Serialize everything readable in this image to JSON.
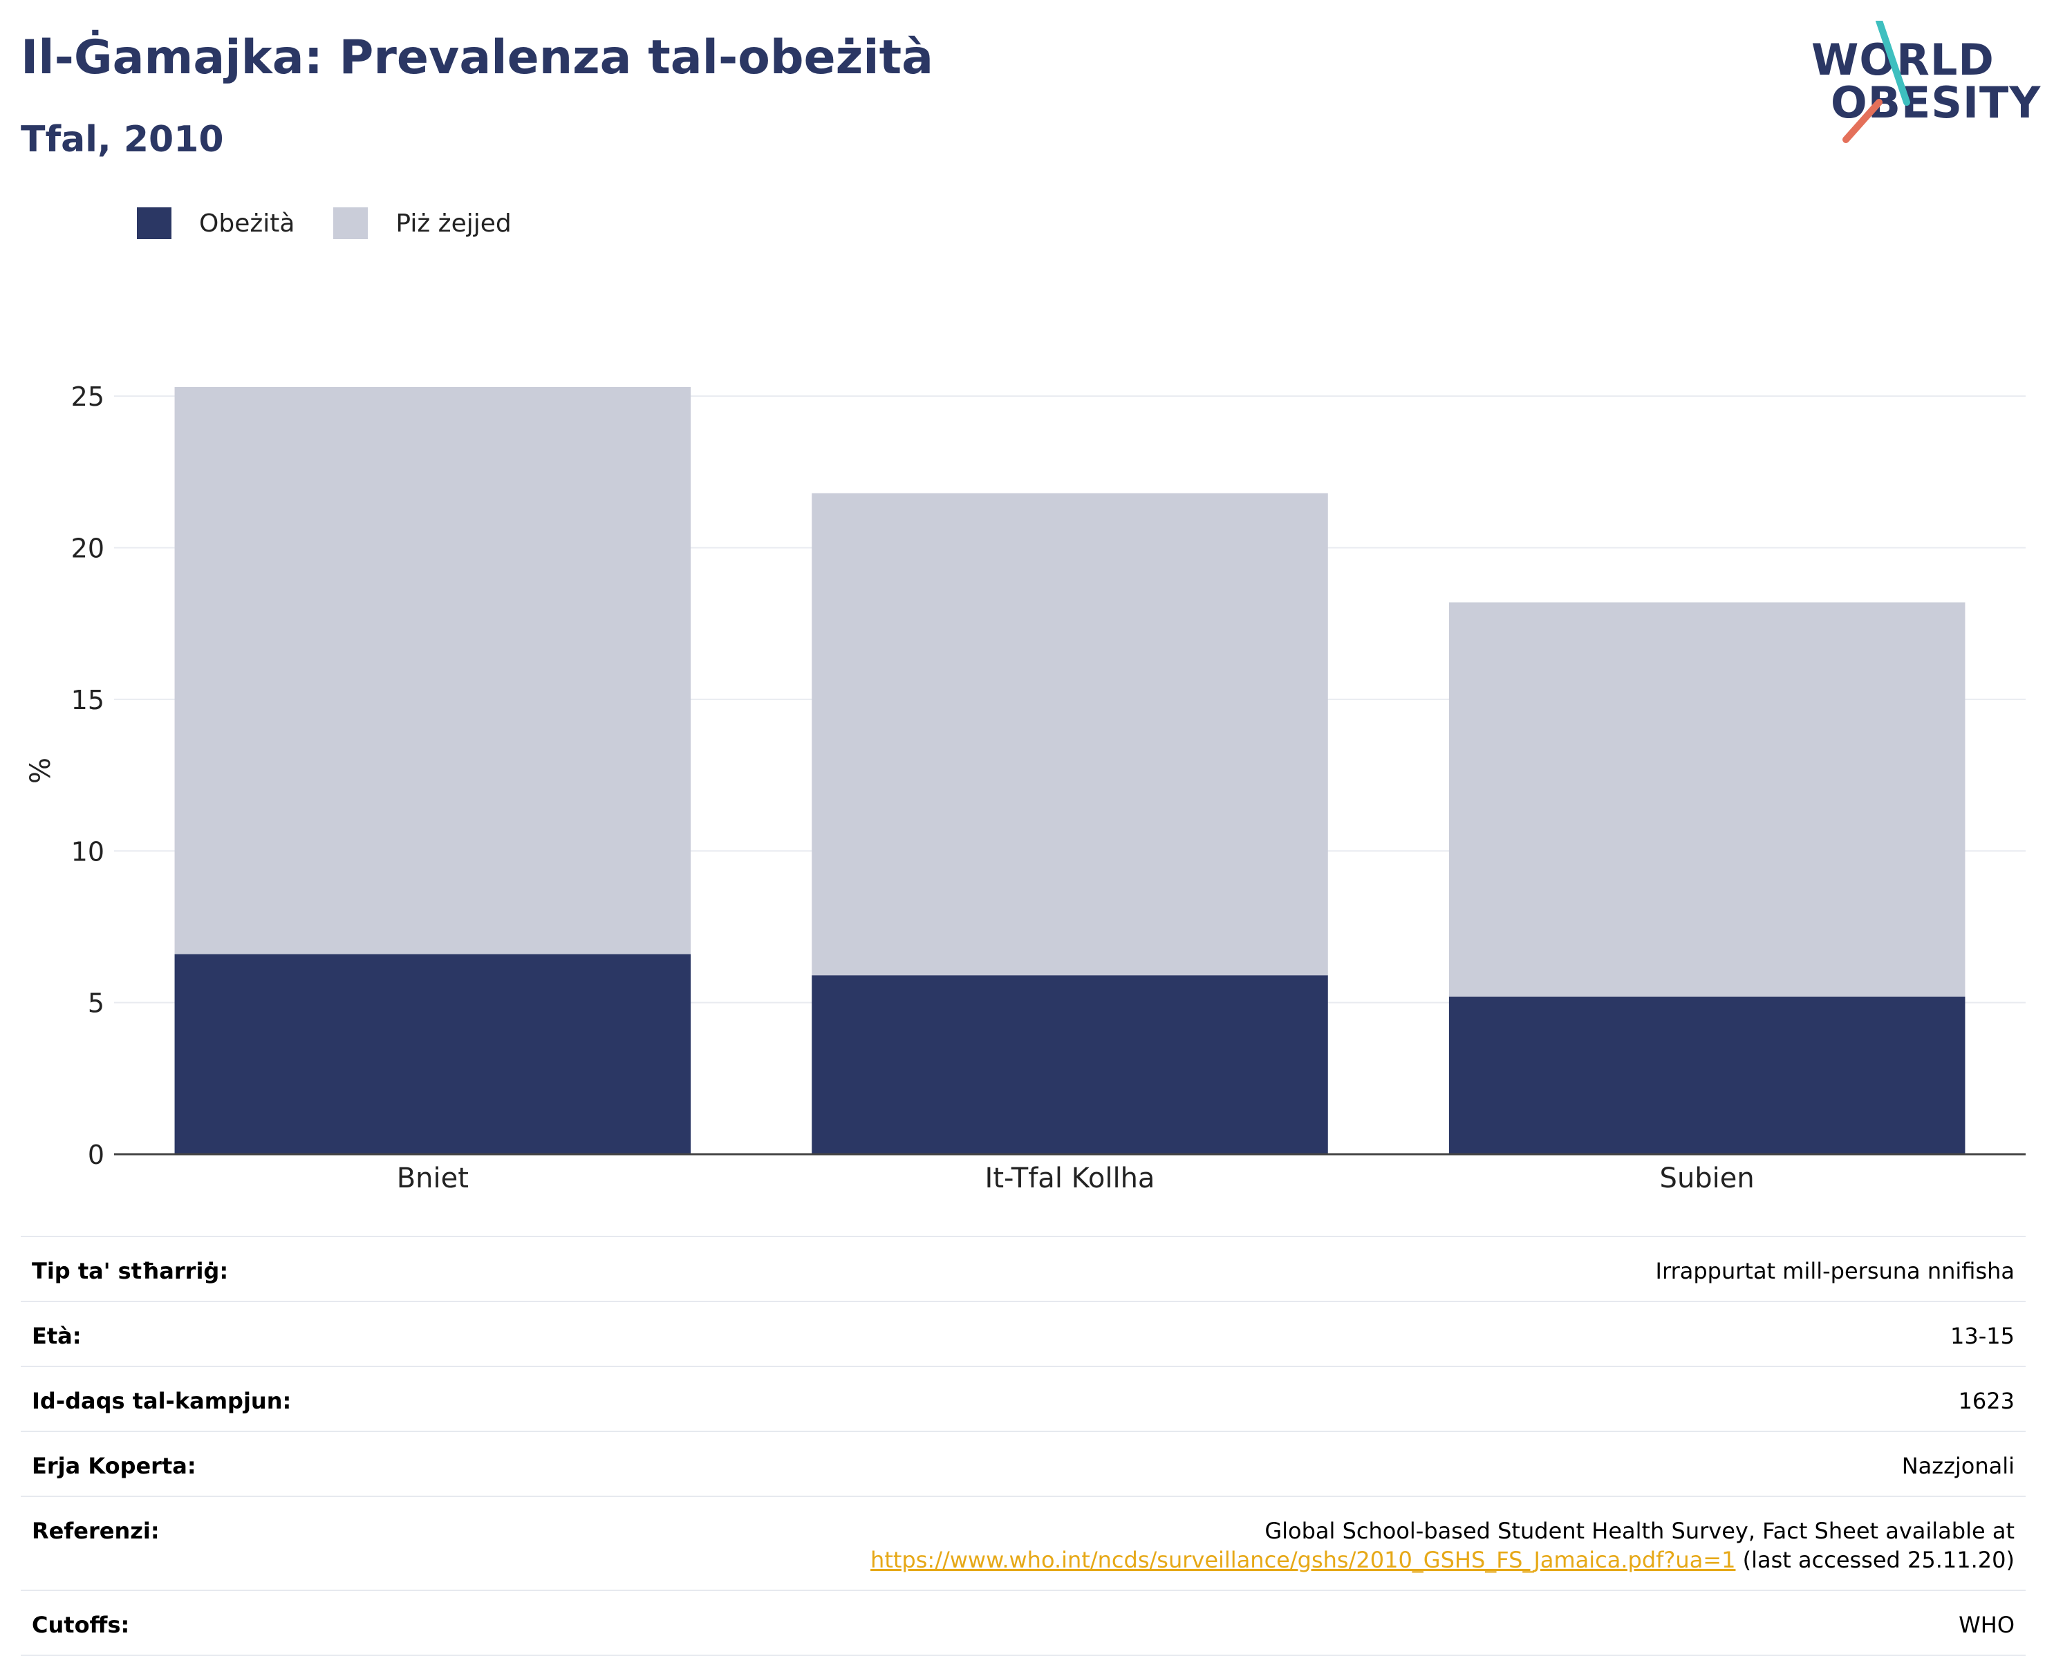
{
  "header": {
    "title": "Il-Ġamajka: Prevalenza tal-obeżità",
    "subtitle": "Tfal, 2010"
  },
  "logo": {
    "line1": "WORLD",
    "line2": "OBESITY"
  },
  "legend": [
    {
      "label": "Obeżità",
      "color": "#2b3764"
    },
    {
      "label": "Piż żejjed",
      "color": "#cacdd9"
    }
  ],
  "chart_data": {
    "type": "bar",
    "stacked": true,
    "categories": [
      "Bniet",
      "It-Tfal Kollha",
      "Subien"
    ],
    "series": [
      {
        "name": "Obeżità",
        "values": [
          6.6,
          5.9,
          5.2
        ],
        "color": "#2b3764"
      },
      {
        "name": "Piż żejjed",
        "values": [
          18.7,
          15.9,
          13.0
        ],
        "color": "#cacdd9"
      }
    ],
    "ylabel": "%",
    "ylim": [
      0,
      25.3
    ],
    "yticks": [
      0,
      5,
      10,
      15,
      20,
      25
    ],
    "grid": true,
    "legend_position": "top-left"
  },
  "info": [
    {
      "label": "Tip ta' stħarriġ:",
      "value": "Irrappurtat mill-persuna nnifisha"
    },
    {
      "label": "Età:",
      "value": "13-15"
    },
    {
      "label": "Id-daqs tal-kampjun:",
      "value": "1623"
    },
    {
      "label": "Erja Koperta:",
      "value": "Nazzjonali"
    },
    {
      "label": "Referenzi:",
      "value_prefix": "Global School-based Student Health Survey, Fact Sheet available at",
      "link": "https://www.who.int/ncds/surveillance/gshs/2010_GSHS_FS_Jamaica.pdf?ua=1",
      "value_suffix": " (last accessed 25.11.20)"
    },
    {
      "label": "Cutoffs:",
      "value": "WHO"
    }
  ]
}
